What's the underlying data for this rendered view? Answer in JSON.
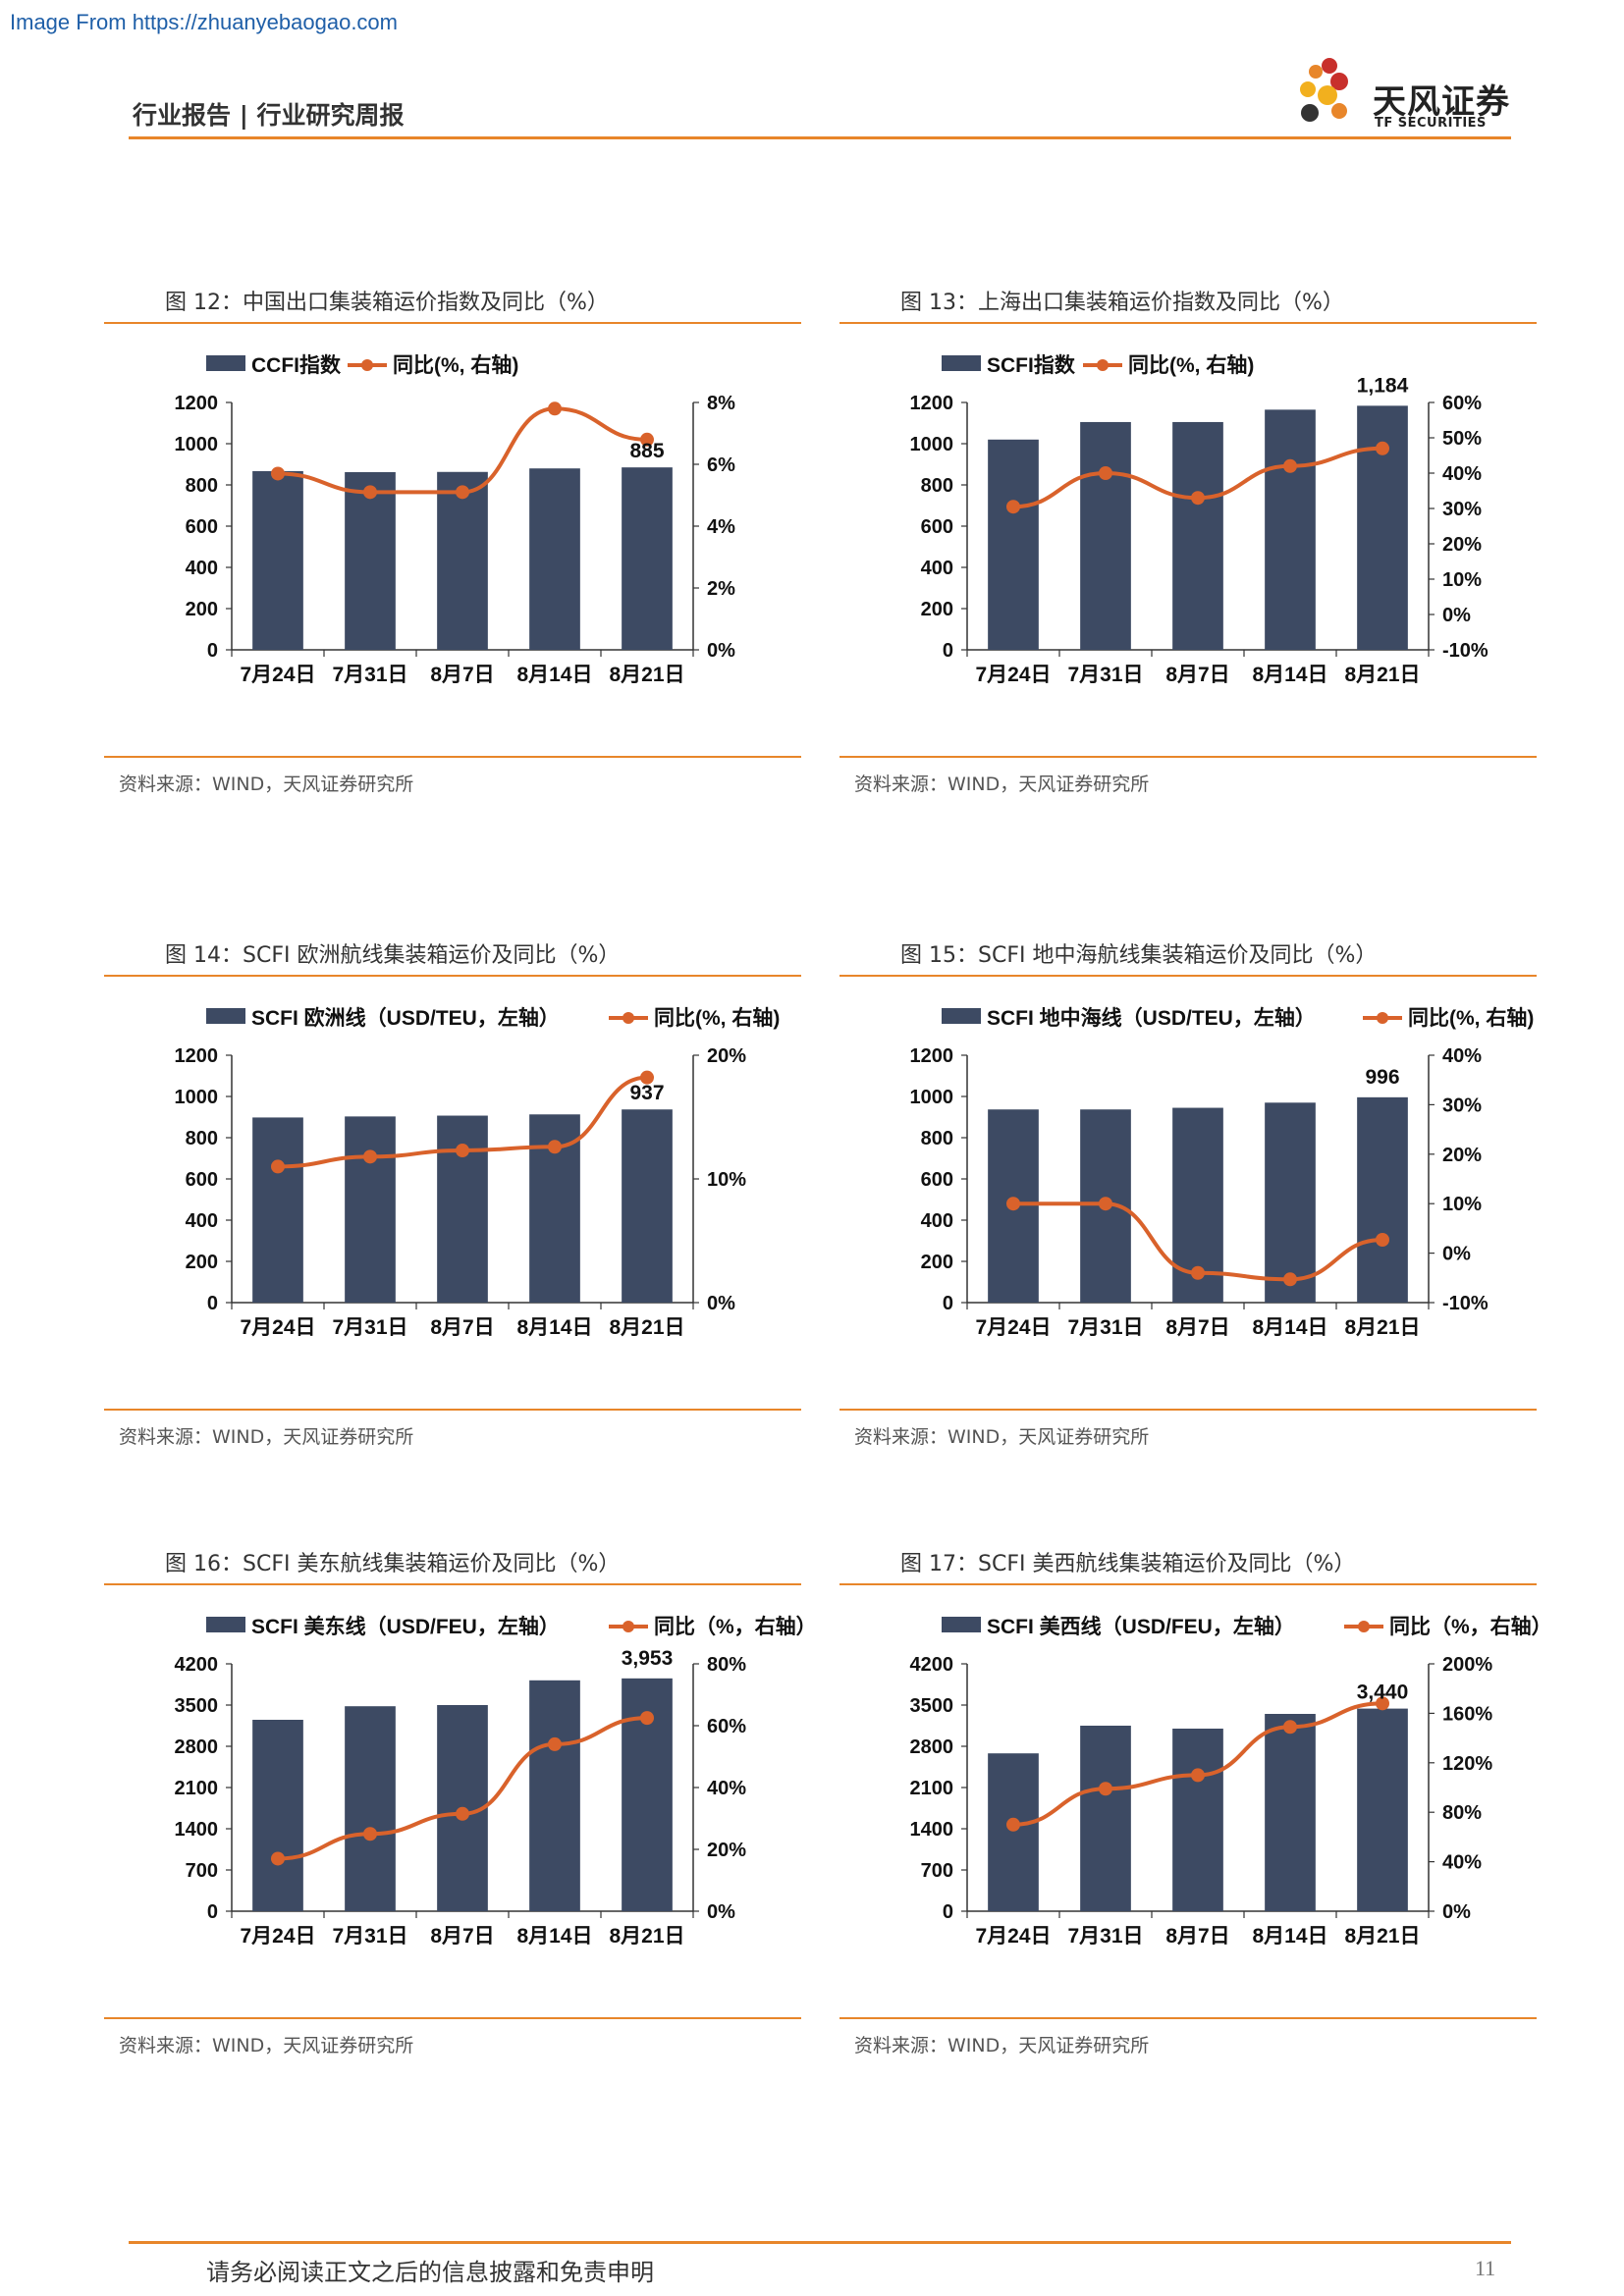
{
  "watermark": "Image From https://zhuanyebaogao.com",
  "header": {
    "left_text": "行业报告 | 行业研究周报",
    "logo_cn": "天风证券",
    "logo_en": "TF SECURITIES"
  },
  "figures": [
    {
      "title": "图 12：中国出口集装箱运价指数及同比（%）",
      "source": "资料来源：WIND，天风证券研究所",
      "chart_data": {
        "type": "bar+line",
        "categories": [
          "7月24日",
          "7月31日",
          "8月7日",
          "8月14日",
          "8月21日"
        ],
        "series": [
          {
            "name": "CCFI指数",
            "type": "bar",
            "axis": "left",
            "values": [
              867,
              862,
              863,
              880,
              885
            ]
          },
          {
            "name": "同比(%, 右轴)",
            "type": "line",
            "axis": "right",
            "values": [
              5.7,
              5.1,
              5.1,
              7.8,
              6.8
            ]
          }
        ],
        "left_ticks": [
          "0",
          "200",
          "400",
          "600",
          "800",
          "1000",
          "1200"
        ],
        "right_ticks": [
          "0%",
          "2%",
          "4%",
          "6%",
          "8%"
        ],
        "ylim_left": [
          0,
          1200
        ],
        "ylim_right": [
          0,
          8
        ],
        "last_label": "885",
        "colors": {
          "bar": "#3d4a63",
          "line": "#d9622b"
        }
      }
    },
    {
      "title": "图 13：上海出口集装箱运价指数及同比（%）",
      "source": "资料来源：WIND，天风证券研究所",
      "chart_data": {
        "type": "bar+line",
        "categories": [
          "7月24日",
          "7月31日",
          "8月7日",
          "8月14日",
          "8月21日"
        ],
        "series": [
          {
            "name": "SCFI指数",
            "type": "bar",
            "axis": "left",
            "values": [
              1020,
              1105,
              1105,
              1165,
              1184
            ]
          },
          {
            "name": "同比(%, 右轴)",
            "type": "line",
            "axis": "right",
            "values": [
              30.5,
              40,
              33,
              42,
              47
            ]
          }
        ],
        "left_ticks": [
          "0",
          "200",
          "400",
          "600",
          "800",
          "1000",
          "1200"
        ],
        "right_ticks": [
          "-10%",
          "0%",
          "10%",
          "20%",
          "30%",
          "40%",
          "50%",
          "60%"
        ],
        "ylim_left": [
          0,
          1200
        ],
        "ylim_right": [
          -10,
          60
        ],
        "last_label": "1,184",
        "colors": {
          "bar": "#3d4a63",
          "line": "#d9622b"
        }
      }
    },
    {
      "title": "图 14：SCFI 欧洲航线集装箱运价及同比（%）",
      "source": "资料来源：WIND，天风证券研究所",
      "chart_data": {
        "type": "bar+line",
        "categories": [
          "7月24日",
          "7月31日",
          "8月7日",
          "8月14日",
          "8月21日"
        ],
        "series": [
          {
            "name": "SCFI 欧洲线（USD/TEU，左轴）",
            "type": "bar",
            "axis": "left",
            "values": [
              898,
              903,
              907,
              913,
              937
            ]
          },
          {
            "name": "同比(%, 右轴)",
            "type": "line",
            "axis": "right",
            "values": [
              11,
              11.8,
              12.3,
              12.6,
              18.2
            ]
          }
        ],
        "left_ticks": [
          "0",
          "200",
          "400",
          "600",
          "800",
          "1000",
          "1200"
        ],
        "right_ticks": [
          "0%",
          "10%",
          "20%"
        ],
        "ylim_left": [
          0,
          1200
        ],
        "ylim_right": [
          0,
          20
        ],
        "last_label": "937",
        "colors": {
          "bar": "#3d4a63",
          "line": "#d9622b"
        }
      }
    },
    {
      "title": "图 15：SCFI 地中海航线集装箱运价及同比（%）",
      "source": "资料来源：WIND，天风证券研究所",
      "chart_data": {
        "type": "bar+line",
        "categories": [
          "7月24日",
          "7月31日",
          "8月7日",
          "8月14日",
          "8月21日"
        ],
        "series": [
          {
            "name": "SCFI 地中海线（USD/TEU，左轴）",
            "type": "bar",
            "axis": "left",
            "values": [
              937,
              937,
              945,
              970,
              996
            ]
          },
          {
            "name": "同比(%, 右轴)",
            "type": "line",
            "axis": "right",
            "values": [
              10,
              10,
              -4,
              -5.3,
              2.7
            ]
          }
        ],
        "left_ticks": [
          "0",
          "200",
          "400",
          "600",
          "800",
          "1000",
          "1200"
        ],
        "right_ticks": [
          "-10%",
          "0%",
          "10%",
          "20%",
          "30%",
          "40%"
        ],
        "ylim_left": [
          0,
          1200
        ],
        "ylim_right": [
          -10,
          40
        ],
        "last_label": "996",
        "colors": {
          "bar": "#3d4a63",
          "line": "#d9622b"
        }
      }
    },
    {
      "title": "图 16：SCFI 美东航线集装箱运价及同比（%）",
      "source": "资料来源：WIND，天风证券研究所",
      "chart_data": {
        "type": "bar+line",
        "categories": [
          "7月24日",
          "7月31日",
          "8月7日",
          "8月14日",
          "8月21日"
        ],
        "series": [
          {
            "name": "SCFI 美东线（USD/FEU，左轴）",
            "type": "bar",
            "axis": "left",
            "values": [
              3250,
              3480,
              3500,
              3920,
              3953
            ]
          },
          {
            "name": "同比（%，右轴）",
            "type": "line",
            "axis": "right",
            "values": [
              17,
              25,
              31.5,
              54,
              62.5
            ]
          }
        ],
        "left_ticks": [
          "0",
          "700",
          "1400",
          "2100",
          "2800",
          "3500",
          "4200"
        ],
        "right_ticks": [
          "0%",
          "20%",
          "40%",
          "60%",
          "80%"
        ],
        "ylim_left": [
          0,
          4200
        ],
        "ylim_right": [
          0,
          80
        ],
        "last_label": "3,953",
        "colors": {
          "bar": "#3d4a63",
          "line": "#d9622b"
        }
      }
    },
    {
      "title": "图 17：SCFI 美西航线集装箱运价及同比（%）",
      "source": "资料来源：WIND，天风证券研究所",
      "chart_data": {
        "type": "bar+line",
        "categories": [
          "7月24日",
          "7月31日",
          "8月7日",
          "8月14日",
          "8月21日"
        ],
        "series": [
          {
            "name": "SCFI 美西线（USD/FEU，左轴）",
            "type": "bar",
            "axis": "left",
            "values": [
              2680,
              3150,
              3100,
              3350,
              3440
            ]
          },
          {
            "name": "同比（%，右轴）",
            "type": "line",
            "axis": "right",
            "values": [
              70,
              99,
              110,
              149,
              168
            ]
          }
        ],
        "left_ticks": [
          "0",
          "700",
          "1400",
          "2100",
          "2800",
          "3500",
          "4200"
        ],
        "right_ticks": [
          "0%",
          "40%",
          "80%",
          "120%",
          "160%",
          "200%"
        ],
        "ylim_left": [
          0,
          4200
        ],
        "ylim_right": [
          0,
          200
        ],
        "last_label": "3,440",
        "colors": {
          "bar": "#3d4a63",
          "line": "#d9622b"
        }
      }
    }
  ],
  "footer": {
    "disclaimer": "请务必阅读正文之后的信息披露和免责申明",
    "page_number": "11"
  }
}
